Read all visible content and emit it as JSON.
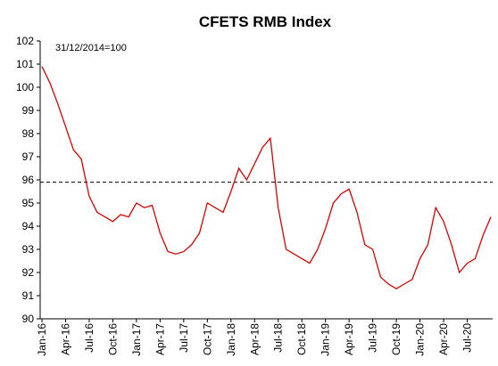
{
  "chart_data": {
    "type": "line",
    "title": "CFETS RMB Index",
    "annotation": "31/12/2014=100",
    "categories": [
      "Jan-16",
      null,
      null,
      "Apr-16",
      null,
      null,
      "Jul-16",
      null,
      null,
      "Oct-16",
      null,
      null,
      "Jan-17",
      null,
      null,
      "Apr-17",
      null,
      null,
      "Jul-17",
      null,
      null,
      "Oct-17",
      null,
      null,
      "Jan-18",
      null,
      null,
      "Apr-18",
      null,
      null,
      "Jul-18",
      null,
      null,
      "Oct-18",
      null,
      null,
      "Jan-19",
      null,
      null,
      "Apr-19",
      null,
      null,
      "Jul-19",
      null,
      null,
      "Oct-19",
      null,
      null,
      "Jan-20",
      null,
      null,
      "Apr-20",
      null,
      null,
      "Jul-20",
      null,
      null,
      null
    ],
    "series": [
      {
        "name": "CFETS RMB Index",
        "color": "#e00000",
        "values": [
          100.9,
          100.2,
          99.3,
          98.3,
          97.3,
          96.9,
          95.3,
          94.6,
          94.4,
          94.2,
          94.5,
          94.4,
          95.0,
          94.8,
          94.9,
          93.7,
          92.9,
          92.8,
          92.9,
          93.2,
          93.7,
          95.0,
          94.8,
          94.6,
          95.5,
          96.5,
          96.0,
          96.7,
          97.4,
          97.8,
          94.8,
          93.0,
          92.8,
          92.6,
          92.4,
          93.0,
          93.9,
          95.0,
          95.4,
          95.6,
          94.6,
          93.2,
          93.0,
          91.8,
          91.5,
          91.3,
          91.5,
          91.7,
          92.6,
          93.2,
          94.8,
          94.2,
          93.2,
          92.0,
          92.4,
          92.6,
          93.6,
          94.4
        ]
      }
    ],
    "reference_line": 95.9,
    "ylim": [
      90,
      102
    ],
    "yticks": [
      90,
      91,
      92,
      93,
      94,
      95,
      96,
      97,
      98,
      99,
      100,
      101,
      102
    ]
  }
}
